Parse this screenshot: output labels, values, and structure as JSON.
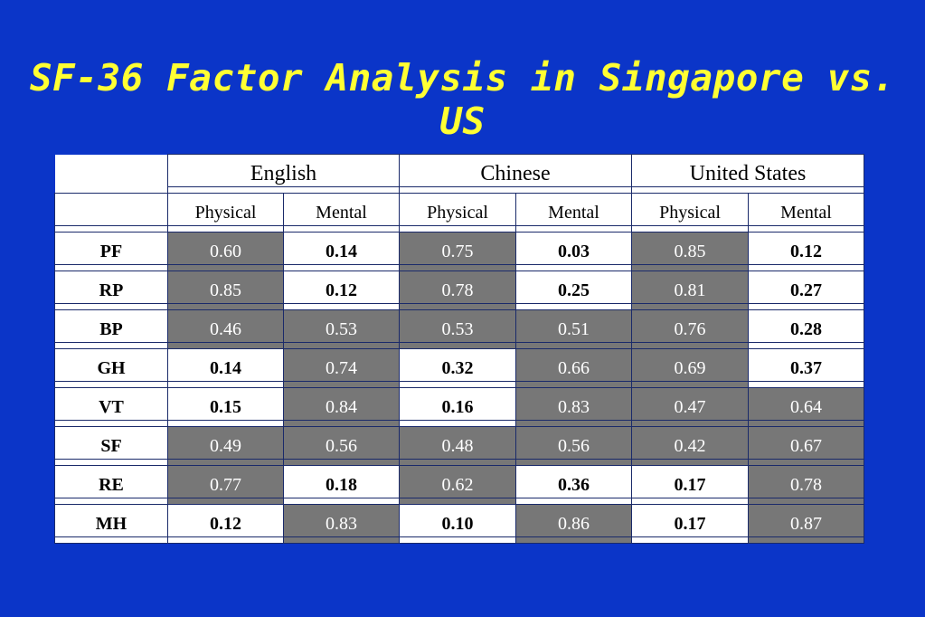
{
  "title": "SF-36 Factor Analysis in Singapore vs. US",
  "groups": [
    "English",
    "Chinese",
    "United States"
  ],
  "subheaders": [
    "Physical",
    "Mental",
    "Physical",
    "Mental",
    "Physical",
    "Mental"
  ],
  "highlight_color": "#777777",
  "background_color": "#0b35c8",
  "title_color": "#ffff33",
  "rows": [
    {
      "label": "PF",
      "values": [
        "0.60",
        "0.14",
        "0.75",
        "0.03",
        "0.85",
        "0.12"
      ],
      "highlight": [
        true,
        false,
        true,
        false,
        true,
        false
      ]
    },
    {
      "label": "RP",
      "values": [
        "0.85",
        "0.12",
        "0.78",
        "0.25",
        "0.81",
        "0.27"
      ],
      "highlight": [
        true,
        false,
        true,
        false,
        true,
        false
      ]
    },
    {
      "label": "BP",
      "values": [
        "0.46",
        "0.53",
        "0.53",
        "0.51",
        "0.76",
        "0.28"
      ],
      "highlight": [
        true,
        true,
        true,
        true,
        true,
        false
      ]
    },
    {
      "label": "GH",
      "values": [
        "0.14",
        "0.74",
        "0.32",
        "0.66",
        "0.69",
        "0.37"
      ],
      "highlight": [
        false,
        true,
        false,
        true,
        true,
        false
      ]
    },
    {
      "label": "VT",
      "values": [
        "0.15",
        "0.84",
        "0.16",
        "0.83",
        "0.47",
        "0.64"
      ],
      "highlight": [
        false,
        true,
        false,
        true,
        true,
        true
      ]
    },
    {
      "label": "SF",
      "values": [
        "0.49",
        "0.56",
        "0.48",
        "0.56",
        "0.42",
        "0.67"
      ],
      "highlight": [
        true,
        true,
        true,
        true,
        true,
        true
      ]
    },
    {
      "label": "RE",
      "values": [
        "0.77",
        "0.18",
        "0.62",
        "0.36",
        "0.17",
        "0.78"
      ],
      "highlight": [
        true,
        false,
        true,
        false,
        false,
        true
      ]
    },
    {
      "label": "MH",
      "values": [
        "0.12",
        "0.83",
        "0.10",
        "0.86",
        "0.17",
        "0.87"
      ],
      "highlight": [
        false,
        true,
        false,
        true,
        false,
        true
      ]
    }
  ]
}
